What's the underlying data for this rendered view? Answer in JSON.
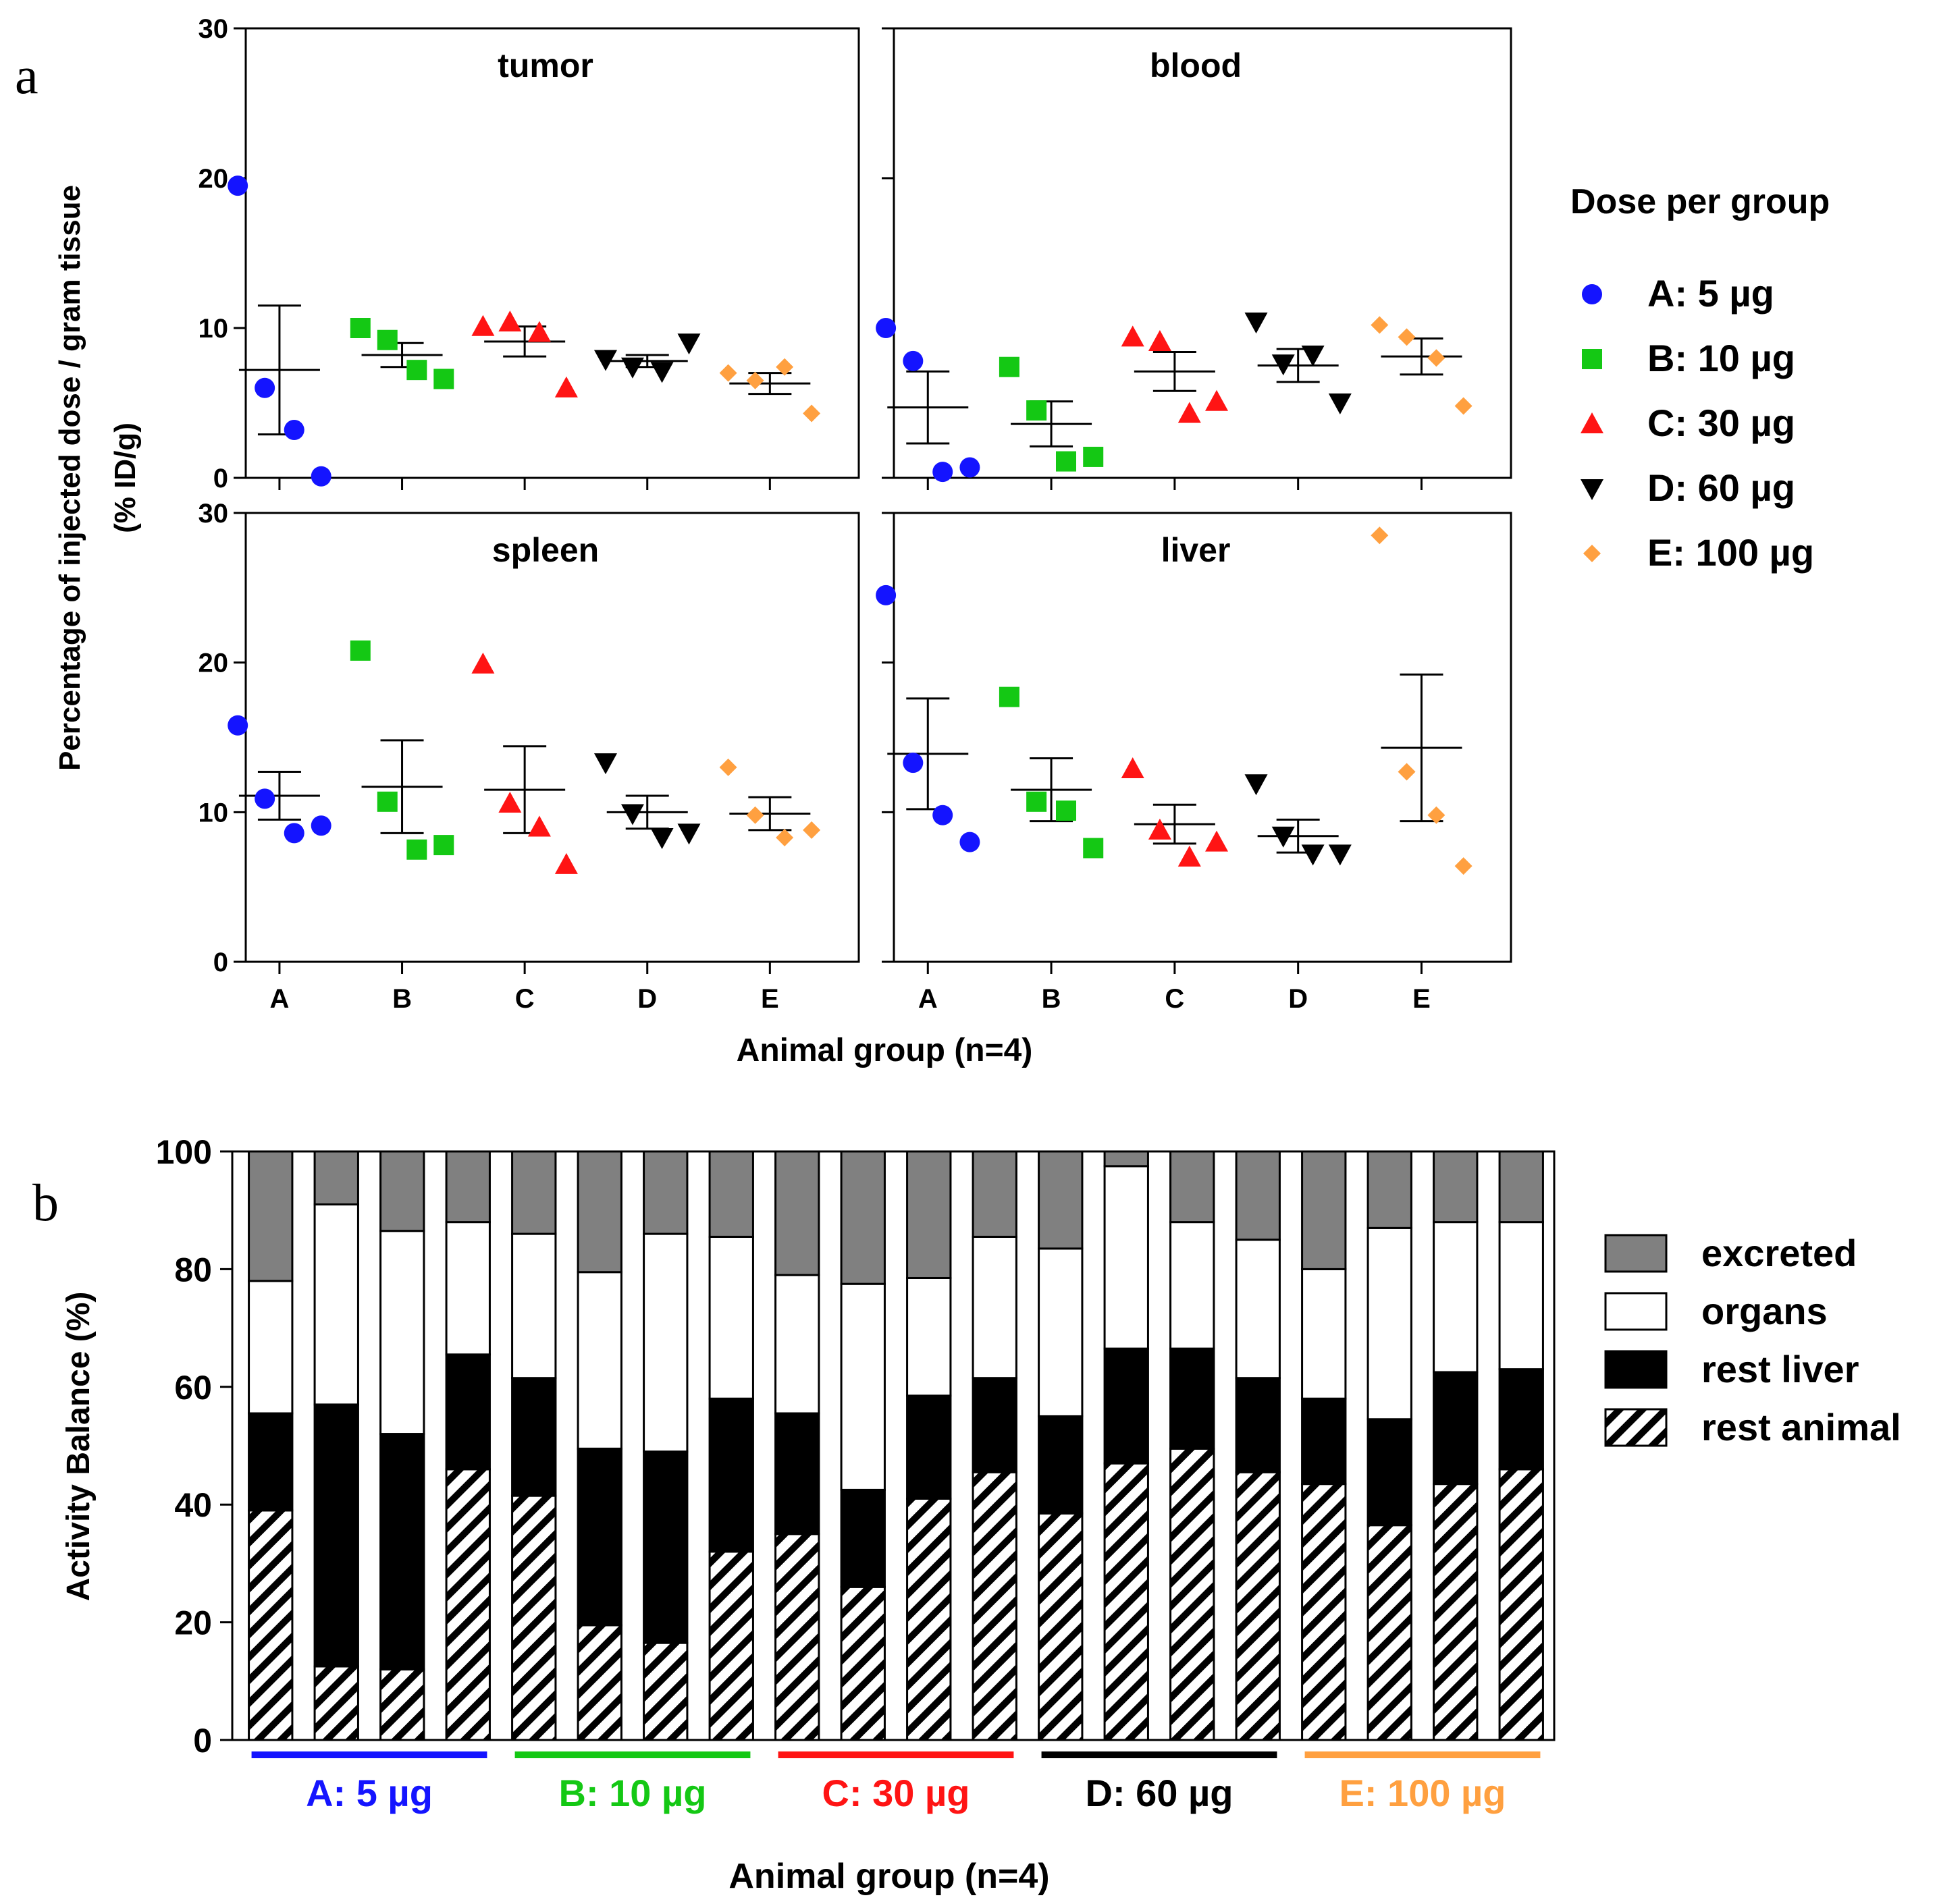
{
  "panel_a": {
    "label": "a",
    "y_axis_label_line1": "Percentage  of injected dose / gram tissue",
    "y_axis_label_line2": "(% ID/g)",
    "x_axis_label": "Animal group (n=4)",
    "legend_title": "Dose per group"
  },
  "panel_b": {
    "label": "b",
    "y_axis_label": "Activity Balance (%)",
    "x_axis_label": "Animal group (n=4)"
  },
  "colors": {
    "A": "#1414ff",
    "B": "#14c814",
    "C": "#ff1414",
    "D": "#000000",
    "E": "#ffa040",
    "excreted": "#808080",
    "organs": "#ffffff",
    "rest_liver": "#000000"
  },
  "chart_data": [
    {
      "type": "scatter",
      "title": "tumor",
      "categories": [
        "A",
        "B",
        "C",
        "D",
        "E"
      ],
      "ylim": [
        0,
        30
      ],
      "yticks": [
        0,
        10,
        20,
        30
      ],
      "series": [
        {
          "name": "A: 5 µg",
          "marker": "circle",
          "values": [
            19.5,
            6.0,
            3.2,
            0.1
          ],
          "mean": 7.2,
          "sem": 4.3
        },
        {
          "name": "B: 10 µg",
          "marker": "square",
          "values": [
            10.0,
            9.2,
            7.2,
            6.6
          ],
          "mean": 8.2,
          "sem": 0.8
        },
        {
          "name": "C: 30 µg",
          "marker": "triangle-up",
          "values": [
            10.1,
            10.4,
            9.7,
            6.0
          ],
          "mean": 9.1,
          "sem": 1.0
        },
        {
          "name": "D: 60 µg",
          "marker": "triangle-down",
          "values": [
            7.9,
            7.4,
            7.1,
            9.0
          ],
          "mean": 7.8,
          "sem": 0.4
        },
        {
          "name": "E: 100 µg",
          "marker": "diamond",
          "values": [
            7.0,
            6.5,
            7.4,
            4.3
          ],
          "mean": 6.3,
          "sem": 0.7
        }
      ]
    },
    {
      "type": "scatter",
      "title": "blood",
      "categories": [
        "A",
        "B",
        "C",
        "D",
        "E"
      ],
      "ylim": [
        0,
        30
      ],
      "yticks": [
        0,
        10,
        20,
        30
      ],
      "series": [
        {
          "name": "A: 5 µg",
          "marker": "circle",
          "values": [
            10.0,
            7.8,
            0.4,
            0.7
          ],
          "mean": 4.7,
          "sem": 2.4
        },
        {
          "name": "B: 10 µg",
          "marker": "square",
          "values": [
            7.4,
            4.5,
            1.1,
            1.4
          ],
          "mean": 3.6,
          "sem": 1.5
        },
        {
          "name": "C: 30 µg",
          "marker": "triangle-up",
          "values": [
            9.4,
            9.1,
            4.3,
            5.1
          ],
          "mean": 7.1,
          "sem": 1.3
        },
        {
          "name": "D: 60 µg",
          "marker": "triangle-down",
          "values": [
            10.4,
            7.6,
            8.2,
            5.0
          ],
          "mean": 7.5,
          "sem": 1.1
        },
        {
          "name": "E: 100 µg",
          "marker": "diamond",
          "values": [
            10.2,
            9.4,
            8.0,
            4.8
          ],
          "mean": 8.1,
          "sem": 1.2
        }
      ]
    },
    {
      "type": "scatter",
      "title": "spleen",
      "categories": [
        "A",
        "B",
        "C",
        "D",
        "E"
      ],
      "ylim": [
        0,
        30
      ],
      "yticks": [
        0,
        10,
        20,
        30
      ],
      "series": [
        {
          "name": "A: 5 µg",
          "marker": "circle",
          "values": [
            15.8,
            10.9,
            8.6,
            9.1
          ],
          "mean": 11.1,
          "sem": 1.6
        },
        {
          "name": "B: 10 µg",
          "marker": "square",
          "values": [
            20.8,
            10.7,
            7.5,
            7.8
          ],
          "mean": 11.7,
          "sem": 3.1
        },
        {
          "name": "C: 30 µg",
          "marker": "triangle-up",
          "values": [
            19.9,
            10.6,
            9.0,
            6.5
          ],
          "mean": 11.5,
          "sem": 2.9
        },
        {
          "name": "D: 60 µg",
          "marker": "triangle-down",
          "values": [
            13.3,
            9.9,
            8.3,
            8.6
          ],
          "mean": 10.0,
          "sem": 1.1
        },
        {
          "name": "E: 100 µg",
          "marker": "diamond",
          "values": [
            13.0,
            9.8,
            8.3,
            8.8
          ],
          "mean": 9.9,
          "sem": 1.1
        }
      ]
    },
    {
      "type": "scatter",
      "title": "liver",
      "categories": [
        "A",
        "B",
        "C",
        "D",
        "E"
      ],
      "ylim": [
        0,
        30
      ],
      "yticks": [
        0,
        10,
        20,
        30
      ],
      "series": [
        {
          "name": "A: 5 µg",
          "marker": "circle",
          "values": [
            24.5,
            13.3,
            9.8,
            8.0
          ],
          "mean": 13.9,
          "sem": 3.7
        },
        {
          "name": "B: 10 µg",
          "marker": "square",
          "values": [
            17.7,
            10.7,
            10.1,
            7.6
          ],
          "mean": 11.5,
          "sem": 2.1
        },
        {
          "name": "C: 30 µg",
          "marker": "triangle-up",
          "values": [
            12.9,
            8.8,
            7.0,
            8.0
          ],
          "mean": 9.2,
          "sem": 1.3
        },
        {
          "name": "D: 60 µg",
          "marker": "triangle-down",
          "values": [
            11.9,
            8.4,
            7.2,
            7.2
          ],
          "mean": 8.4,
          "sem": 1.1
        },
        {
          "name": "E: 100 µg",
          "marker": "diamond",
          "values": [
            28.5,
            12.7,
            9.8,
            6.4
          ],
          "mean": 14.3,
          "sem": 4.9
        }
      ]
    },
    {
      "type": "bar",
      "stacked": true,
      "title": "",
      "ylabel": "Activity Balance (%)",
      "xlabel": "Animal group (n=4)",
      "ylim": [
        0,
        100
      ],
      "yticks": [
        0,
        20,
        40,
        60,
        80,
        100
      ],
      "groups": [
        {
          "label": "A: 5 µg",
          "key": "A"
        },
        {
          "label": "B: 10 µg",
          "key": "B"
        },
        {
          "label": "C: 30 µg",
          "key": "C"
        },
        {
          "label": "D: 60 µg",
          "key": "D"
        },
        {
          "label": "E: 100 µg",
          "key": "E"
        }
      ],
      "series": [
        {
          "name": "rest animal",
          "fill": "hatch",
          "values": [
            39,
            12.5,
            12,
            46,
            41.5,
            19.5,
            16.5,
            32,
            35,
            26,
            41,
            45.5,
            38.5,
            47,
            49.5,
            45.5,
            43.5,
            36.5,
            43.5,
            46
          ]
        },
        {
          "name": "rest liver",
          "fill": "black",
          "values": [
            16.5,
            44.5,
            40,
            19.5,
            20,
            30,
            32.5,
            26,
            20.5,
            16.5,
            17.5,
            16,
            16.5,
            19.5,
            17,
            16,
            14.5,
            18,
            19,
            17
          ]
        },
        {
          "name": "organs",
          "fill": "white",
          "values": [
            22.5,
            34,
            34.5,
            22.5,
            24.5,
            30,
            37,
            27.5,
            23.5,
            35,
            20,
            24,
            28.5,
            31,
            21.5,
            23.5,
            22,
            32.5,
            25.5,
            25
          ]
        },
        {
          "name": "excreted",
          "fill": "gray",
          "values": [
            22,
            9,
            13.5,
            12,
            14,
            20.5,
            14,
            14.5,
            21,
            22.5,
            21.5,
            14.5,
            16.5,
            2.5,
            12,
            15,
            20,
            13,
            12,
            12
          ]
        }
      ],
      "legend": [
        "excreted",
        "organs",
        "rest liver",
        "rest animal"
      ]
    }
  ]
}
